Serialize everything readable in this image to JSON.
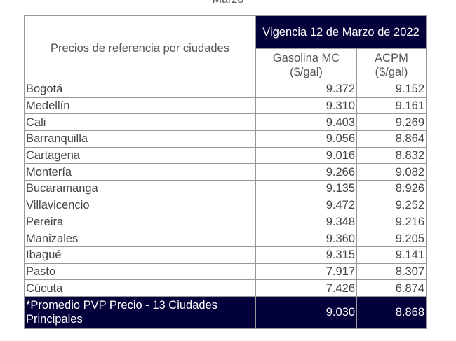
{
  "caption": "Marzo",
  "table": {
    "title": "Precios de referencia por ciudades",
    "period": "Vigencia 12 de Marzo de 2022",
    "columns": [
      "Gasolina MC ($/gal)",
      "ACPM ($/gal)"
    ],
    "rows": [
      {
        "city": "Bogotá",
        "gasolina": "9.372",
        "acpm": "9.152"
      },
      {
        "city": "Medellín",
        "gasolina": "9.310",
        "acpm": "9.161"
      },
      {
        "city": "Cali",
        "gasolina": "9.403",
        "acpm": "9.269"
      },
      {
        "city": "Barranquilla",
        "gasolina": "9.056",
        "acpm": "8.864"
      },
      {
        "city": "Cartagena",
        "gasolina": "9.016",
        "acpm": "8.832"
      },
      {
        "city": "Montería",
        "gasolina": "9.266",
        "acpm": "9.082"
      },
      {
        "city": "Bucaramanga",
        "gasolina": "9.135",
        "acpm": "8.926"
      },
      {
        "city": "Villavicencio",
        "gasolina": "9.472",
        "acpm": "9.252"
      },
      {
        "city": "Pereira",
        "gasolina": "9.348",
        "acpm": "9.216"
      },
      {
        "city": "Manizales",
        "gasolina": "9.360",
        "acpm": "9.205"
      },
      {
        "city": "Ibagué",
        "gasolina": "9.315",
        "acpm": "9.141"
      },
      {
        "city": "Pasto",
        "gasolina": "7.917",
        "acpm": "8.307"
      },
      {
        "city": "Cúcuta",
        "gasolina": "7.426",
        "acpm": "6.874"
      }
    ],
    "footer": {
      "label": "*Promedio PVP Precio - 13 Ciudades Principales",
      "gasolina": "9.030",
      "acpm": "8.868"
    }
  },
  "colors": {
    "header_bg": "#03013a",
    "header_text": "#ffffff",
    "border": "#999999"
  }
}
